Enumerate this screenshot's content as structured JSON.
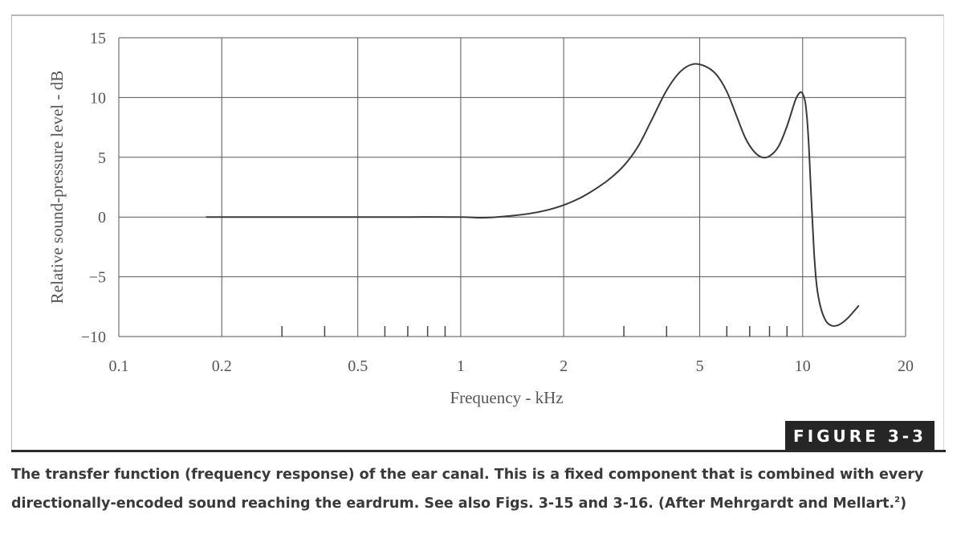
{
  "chart_data": {
    "type": "line",
    "title": "",
    "xlabel": "Frequency - kHz",
    "ylabel": "Relative sound-pressure level - dB",
    "x_scale": "log",
    "xlim": [
      0.1,
      20
    ],
    "ylim": [
      -10,
      15
    ],
    "x_ticks": [
      {
        "value": 0.1,
        "label": "0.1"
      },
      {
        "value": 0.2,
        "label": "0.2"
      },
      {
        "value": 0.5,
        "label": "0.5"
      },
      {
        "value": 1,
        "label": "1"
      },
      {
        "value": 2,
        "label": "2"
      },
      {
        "value": 5,
        "label": "5"
      },
      {
        "value": 10,
        "label": "10"
      },
      {
        "value": 20,
        "label": "20"
      }
    ],
    "x_minor_ticks": [
      0.3,
      0.4,
      0.6,
      0.7,
      0.8,
      0.9,
      3,
      4,
      6,
      7,
      8,
      9
    ],
    "y_ticks": [
      {
        "value": 15,
        "label": "15"
      },
      {
        "value": 10,
        "label": "10"
      },
      {
        "value": 5,
        "label": "5"
      },
      {
        "value": 0,
        "label": "0"
      },
      {
        "value": -5,
        "label": "−5"
      },
      {
        "value": -10,
        "label": "−10"
      }
    ],
    "grid": true,
    "series": [
      {
        "color": "#3a3a3a",
        "points": [
          [
            0.18,
            0
          ],
          [
            0.3,
            0
          ],
          [
            0.5,
            0
          ],
          [
            0.7,
            0
          ],
          [
            1.0,
            0
          ],
          [
            1.1,
            -0.05
          ],
          [
            1.2,
            -0.05
          ],
          [
            1.4,
            0.1
          ],
          [
            1.6,
            0.3
          ],
          [
            1.8,
            0.6
          ],
          [
            2.0,
            1.0
          ],
          [
            2.2,
            1.5
          ],
          [
            2.4,
            2.1
          ],
          [
            2.7,
            3.1
          ],
          [
            3.0,
            4.3
          ],
          [
            3.3,
            5.9
          ],
          [
            3.6,
            8.0
          ],
          [
            4.0,
            10.6
          ],
          [
            4.4,
            12.2
          ],
          [
            4.8,
            12.8
          ],
          [
            5.2,
            12.6
          ],
          [
            5.6,
            11.9
          ],
          [
            6.0,
            10.5
          ],
          [
            6.4,
            8.5
          ],
          [
            6.8,
            6.6
          ],
          [
            7.2,
            5.5
          ],
          [
            7.6,
            5.0
          ],
          [
            8.0,
            5.1
          ],
          [
            8.5,
            5.9
          ],
          [
            9.0,
            7.6
          ],
          [
            9.5,
            9.7
          ],
          [
            9.8,
            10.4
          ],
          [
            10.0,
            10.3
          ],
          [
            10.2,
            9.4
          ],
          [
            10.4,
            6.5
          ],
          [
            10.6,
            1.5
          ],
          [
            10.8,
            -3.0
          ],
          [
            11.0,
            -5.8
          ],
          [
            11.3,
            -7.6
          ],
          [
            11.7,
            -8.7
          ],
          [
            12.2,
            -9.1
          ],
          [
            12.8,
            -9.0
          ],
          [
            13.5,
            -8.5
          ],
          [
            14.2,
            -7.8
          ],
          [
            14.6,
            -7.4
          ]
        ]
      }
    ]
  },
  "figure_label": "FIGURE 3-3",
  "caption": {
    "text": "The transfer function (frequency response) of the ear canal. This is a fixed component that is combined with every directionally-encoded sound reaching the eardrum. See also Figs. 3-15 and 3-16. (After Mehrgardt and Mellart.",
    "ref": "2",
    "end": ")"
  }
}
